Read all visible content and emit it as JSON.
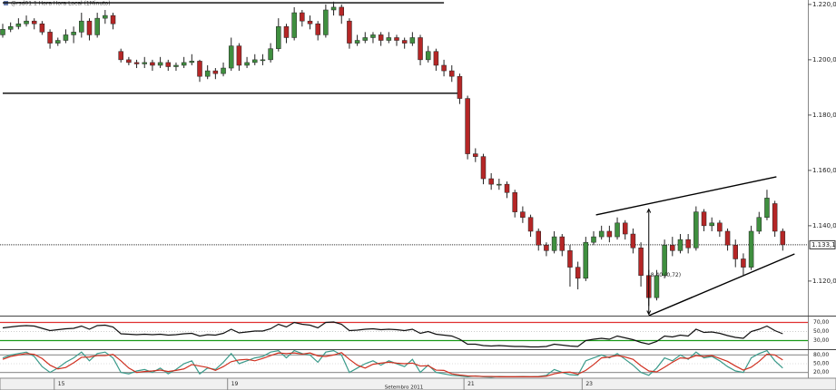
{
  "chart_data": [
    {
      "type": "candlestick",
      "title": "@rsd01 1 Hora Hora Local (1Minuto)",
      "ylim": [
        1107.5,
        1221.6
      ],
      "yticks": [
        {
          "value": 1120,
          "label": "1.120,00"
        },
        {
          "value": 1140,
          "label": "1.140,00"
        },
        {
          "value": 1160,
          "label": "1.160,00"
        },
        {
          "value": 1180,
          "label": "1.180,00"
        },
        {
          "value": 1200,
          "label": "1.200,00"
        },
        {
          "value": 1220,
          "label": "1.220,00"
        }
      ],
      "up_color": "#3f8f3f",
      "down_color": "#b52626",
      "last": {
        "value": 1133.11,
        "label": "1.133,11"
      },
      "trendlines": [
        {
          "from": [
            0,
            1220.6
          ],
          "to": [
            56,
            1220.6
          ]
        },
        {
          "from": [
            0,
            1187.9
          ],
          "to": [
            58,
            1187.9
          ]
        },
        {
          "from": [
            75.3,
            1143.9
          ],
          "to": [
            98.2,
            1157.7
          ]
        },
        {
          "from": [
            82,
            1107.5
          ],
          "to": [
            100.5,
            1129.8
          ]
        }
      ],
      "measure": {
        "index": 82,
        "from": 1108,
        "to": 1146,
        "label": "8,40 (0,72)"
      },
      "ohlc": [
        [
          1209,
          1213,
          1208,
          1211
        ],
        [
          1211,
          1213.5,
          1210,
          1212
        ],
        [
          1212,
          1215,
          1211,
          1213
        ],
        [
          1213,
          1216,
          1212,
          1214
        ],
        [
          1214,
          1215,
          1211,
          1213
        ],
        [
          1213,
          1214,
          1209,
          1210
        ],
        [
          1210,
          1211,
          1204,
          1206
        ],
        [
          1206,
          1208,
          1205,
          1207
        ],
        [
          1207,
          1211,
          1206,
          1209
        ],
        [
          1209,
          1212,
          1206,
          1210
        ],
        [
          1210,
          1217,
          1208,
          1214
        ],
        [
          1214,
          1215,
          1207,
          1209
        ],
        [
          1209,
          1217,
          1208,
          1215
        ],
        [
          1215,
          1218,
          1213,
          1216
        ],
        [
          1216,
          1217,
          1211,
          1213
        ],
        [
          1203,
          1204,
          1199,
          1200
        ],
        [
          1200,
          1201,
          1198,
          1199
        ],
        [
          1199,
          1200,
          1197,
          1198.5
        ],
        [
          1198.5,
          1201,
          1197,
          1199
        ],
        [
          1199,
          1200,
          1196,
          1198
        ],
        [
          1198,
          1201,
          1197,
          1199
        ],
        [
          1199,
          1200,
          1196,
          1197.5
        ],
        [
          1197.5,
          1199,
          1196,
          1198
        ],
        [
          1198,
          1201,
          1197,
          1199
        ],
        [
          1199,
          1202,
          1198,
          1199.5
        ],
        [
          1199.5,
          1200,
          1192,
          1194
        ],
        [
          1194,
          1198,
          1193,
          1196
        ],
        [
          1196,
          1197,
          1193,
          1195
        ],
        [
          1195,
          1199,
          1194,
          1197
        ],
        [
          1197,
          1208,
          1196,
          1205
        ],
        [
          1205,
          1206,
          1196,
          1198
        ],
        [
          1198,
          1201,
          1197,
          1199
        ],
        [
          1199,
          1202,
          1198,
          1200
        ],
        [
          1200,
          1202,
          1198,
          1200
        ],
        [
          1200,
          1206,
          1199,
          1204
        ],
        [
          1204,
          1215,
          1203,
          1212
        ],
        [
          1212,
          1213,
          1206,
          1208
        ],
        [
          1208,
          1219,
          1207,
          1217
        ],
        [
          1217,
          1218,
          1212,
          1214
        ],
        [
          1214,
          1216,
          1211,
          1213
        ],
        [
          1213,
          1214,
          1207,
          1209
        ],
        [
          1209,
          1220,
          1208,
          1218
        ],
        [
          1218,
          1221,
          1216,
          1219
        ],
        [
          1219,
          1220,
          1213,
          1216
        ],
        [
          1214,
          1215,
          1204,
          1206
        ],
        [
          1206,
          1209,
          1205,
          1207
        ],
        [
          1207,
          1210,
          1206,
          1208
        ],
        [
          1208,
          1210,
          1206,
          1209
        ],
        [
          1209,
          1210,
          1205,
          1207
        ],
        [
          1207,
          1210,
          1206,
          1208
        ],
        [
          1208,
          1209,
          1205,
          1207
        ],
        [
          1207,
          1208,
          1204,
          1206
        ],
        [
          1206,
          1210,
          1205,
          1208
        ],
        [
          1208,
          1209,
          1198,
          1200
        ],
        [
          1200,
          1205,
          1199,
          1203
        ],
        [
          1203,
          1204,
          1196,
          1198
        ],
        [
          1198,
          1200,
          1194,
          1196
        ],
        [
          1196,
          1198,
          1192,
          1194
        ],
        [
          1194,
          1195,
          1184,
          1186
        ],
        [
          1186,
          1187,
          1164,
          1166
        ],
        [
          1166,
          1168,
          1163,
          1165
        ],
        [
          1165,
          1166,
          1155,
          1157
        ],
        [
          1157,
          1159,
          1153,
          1155
        ],
        [
          1155,
          1157,
          1153,
          1155
        ],
        [
          1155,
          1156,
          1150,
          1152
        ],
        [
          1152,
          1153,
          1143,
          1145
        ],
        [
          1145,
          1147,
          1141,
          1143
        ],
        [
          1143,
          1144,
          1136,
          1138
        ],
        [
          1138,
          1139,
          1131,
          1133
        ],
        [
          1133,
          1134,
          1129,
          1131
        ],
        [
          1131,
          1138,
          1130,
          1136
        ],
        [
          1136,
          1137,
          1129,
          1131
        ],
        [
          1131,
          1133,
          1118,
          1125
        ],
        [
          1125,
          1127,
          1117,
          1121
        ],
        [
          1121,
          1136,
          1120,
          1134
        ],
        [
          1134,
          1138,
          1133,
          1136
        ],
        [
          1136,
          1140,
          1135,
          1138
        ],
        [
          1138,
          1140,
          1134,
          1136
        ],
        [
          1136,
          1143,
          1135,
          1141
        ],
        [
          1141,
          1142,
          1135,
          1137
        ],
        [
          1137,
          1139,
          1130,
          1132
        ],
        [
          1132,
          1134,
          1118,
          1122
        ],
        [
          1122,
          1124,
          1111,
          1114
        ],
        [
          1114,
          1124,
          1113,
          1122
        ],
        [
          1122,
          1135,
          1121,
          1133
        ],
        [
          1133,
          1136,
          1129,
          1131
        ],
        [
          1131,
          1137,
          1130,
          1135
        ],
        [
          1135,
          1137,
          1130,
          1132
        ],
        [
          1132,
          1147,
          1131,
          1145
        ],
        [
          1145,
          1146,
          1138,
          1140
        ],
        [
          1140,
          1143,
          1138,
          1141
        ],
        [
          1141,
          1142,
          1136,
          1138
        ],
        [
          1138,
          1139,
          1131,
          1133
        ],
        [
          1133,
          1135,
          1125,
          1128
        ],
        [
          1128,
          1130,
          1122,
          1125
        ],
        [
          1125,
          1140,
          1124,
          1138
        ],
        [
          1138,
          1145,
          1137,
          1143
        ],
        [
          1143,
          1153,
          1142,
          1150
        ],
        [
          1148,
          1149,
          1136,
          1138
        ],
        [
          1138,
          1139,
          1131,
          1133.11
        ]
      ]
    },
    {
      "type": "line",
      "ylim": [
        15,
        85
      ],
      "yticks": [
        {
          "value": 30,
          "label": "30,00"
        },
        {
          "value": 50,
          "label": "50,00"
        },
        {
          "value": 70,
          "label": "70,00"
        }
      ],
      "level_colors": [
        "#1a9a1a",
        "#999999",
        "#e03030"
      ],
      "series": [
        {
          "color": "#111111",
          "values": [
            58,
            60,
            62,
            63,
            62,
            57,
            52,
            54,
            56,
            57,
            62,
            55,
            63,
            64,
            60,
            45,
            44,
            43,
            44,
            43,
            44,
            42,
            43,
            45,
            46,
            40,
            43,
            42,
            46,
            55,
            47,
            49,
            51,
            51,
            56,
            66,
            60,
            70,
            66,
            64,
            58,
            70,
            71,
            66,
            52,
            53,
            55,
            56,
            54,
            55,
            54,
            52,
            55,
            46,
            50,
            44,
            42,
            40,
            33,
            22,
            22,
            19,
            18,
            19,
            18,
            17,
            17,
            16,
            16,
            17,
            22,
            20,
            18,
            17,
            30,
            33,
            35,
            33,
            40,
            36,
            32,
            26,
            22,
            28,
            40,
            38,
            42,
            40,
            55,
            48,
            49,
            46,
            41,
            37,
            35,
            50,
            55,
            62,
            52,
            45
          ]
        }
      ]
    },
    {
      "type": "line",
      "ylim": [
        0,
        100
      ],
      "yticks": [
        {
          "value": 20,
          "label": "20,00"
        },
        {
          "value": 50,
          "label": "50,00"
        },
        {
          "value": 80,
          "label": "80,00"
        }
      ],
      "level_colors": [
        "#999999",
        "#bbbbbb",
        "#999999"
      ],
      "x_label": "Setembro 2011",
      "categories": [
        null,
        null,
        null,
        null,
        null,
        null,
        null,
        "15",
        null,
        null,
        null,
        null,
        null,
        null,
        null,
        null,
        null,
        null,
        null,
        null,
        null,
        null,
        null,
        null,
        null,
        null,
        null,
        null,
        null,
        "19",
        null,
        null,
        null,
        null,
        null,
        null,
        null,
        null,
        null,
        null,
        null,
        null,
        null,
        null,
        null,
        null,
        null,
        null,
        null,
        null,
        null,
        null,
        null,
        null,
        null,
        null,
        null,
        null,
        null,
        "21",
        null,
        null,
        null,
        null,
        null,
        null,
        null,
        null,
        null,
        null,
        null,
        null,
        null,
        null,
        "23",
        null,
        null,
        null,
        null,
        null,
        null,
        null,
        null,
        null,
        null,
        null,
        null,
        null,
        null,
        null,
        null,
        null,
        null,
        null,
        null,
        null,
        null,
        null,
        null,
        null
      ],
      "series": [
        {
          "color": "#3a9a8a",
          "values": [
            70,
            80,
            85,
            90,
            75,
            40,
            20,
            35,
            55,
            70,
            90,
            60,
            85,
            90,
            70,
            20,
            15,
            25,
            30,
            20,
            35,
            15,
            30,
            50,
            60,
            15,
            35,
            30,
            55,
            85,
            50,
            60,
            70,
            75,
            90,
            95,
            70,
            95,
            85,
            80,
            55,
            90,
            95,
            80,
            20,
            35,
            50,
            60,
            45,
            60,
            50,
            40,
            65,
            20,
            45,
            20,
            15,
            10,
            8,
            5,
            8,
            5,
            4,
            6,
            5,
            5,
            6,
            5,
            6,
            10,
            30,
            20,
            12,
            10,
            60,
            70,
            80,
            70,
            85,
            65,
            45,
            20,
            10,
            35,
            70,
            60,
            80,
            65,
            90,
            70,
            75,
            60,
            40,
            25,
            20,
            70,
            85,
            95,
            60,
            35
          ]
        },
        {
          "color": "#d03020",
          "values": [
            65,
            75,
            80,
            85,
            82,
            68,
            45,
            32,
            37,
            53,
            72,
            73,
            78,
            78,
            82,
            60,
            35,
            20,
            23,
            25,
            28,
            23,
            27,
            32,
            47,
            42,
            37,
            27,
            40,
            57,
            63,
            65,
            60,
            68,
            78,
            87,
            85,
            87,
            83,
            87,
            77,
            75,
            80,
            88,
            65,
            45,
            35,
            48,
            52,
            55,
            52,
            50,
            52,
            42,
            43,
            28,
            27,
            15,
            11,
            8,
            7,
            6,
            6,
            5,
            5,
            5,
            5,
            5,
            5,
            7,
            15,
            20,
            21,
            14,
            27,
            47,
            70,
            73,
            78,
            73,
            65,
            43,
            25,
            22,
            38,
            55,
            70,
            68,
            78,
            75,
            78,
            68,
            58,
            42,
            28,
            38,
            58,
            83,
            80,
            63
          ]
        }
      ]
    }
  ]
}
